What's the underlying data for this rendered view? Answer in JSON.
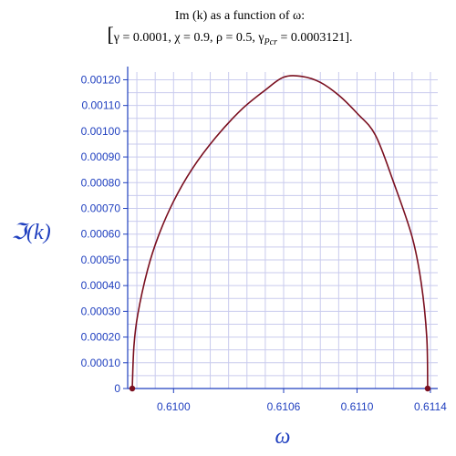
{
  "chart_data": {
    "type": "line",
    "title_line1": "Im (k) as a function of ω:",
    "title_line2": {
      "bracket_open": "[",
      "params": "γ = 0.0001,  χ = 0.9,  ρ = 0.5,  γ",
      "subscript": "Pcr",
      "value": " = 0.0003121",
      "bracket_close": "]."
    },
    "xlabel": "ω",
    "ylabel": "ℑ(k)",
    "xlim": [
      0.60975,
      0.61144
    ],
    "ylim": [
      0,
      0.00123
    ],
    "xticks": [
      {
        "value": 0.61,
        "label": "0.6100"
      },
      {
        "value": 0.6106,
        "label": "0.6106"
      },
      {
        "value": 0.611,
        "label": "0.6110"
      },
      {
        "value": 0.6114,
        "label": "0.6114"
      }
    ],
    "yticks": [
      {
        "value": 0,
        "label": "0"
      },
      {
        "value": 0.0001,
        "label": "0.00010"
      },
      {
        "value": 0.0002,
        "label": "0.00020"
      },
      {
        "value": 0.0003,
        "label": "0.00030"
      },
      {
        "value": 0.0004,
        "label": "0.00040"
      },
      {
        "value": 0.0005,
        "label": "0.00050"
      },
      {
        "value": 0.0006,
        "label": "0.00060"
      },
      {
        "value": 0.0007,
        "label": "0.00070"
      },
      {
        "value": 0.0008,
        "label": "0.00080"
      },
      {
        "value": 0.0009,
        "label": "0.00090"
      },
      {
        "value": 0.001,
        "label": "0.00100"
      },
      {
        "value": 0.0011,
        "label": "0.00110"
      },
      {
        "value": 0.0012,
        "label": "0.00120"
      }
    ],
    "grid": true,
    "series": [
      {
        "color": "#7a0f1f",
        "points": [
          [
            0.609775,
            0.0
          ],
          [
            0.609784,
            0.000164
          ],
          [
            0.609805,
            0.000288
          ],
          [
            0.609858,
            0.00046
          ],
          [
            0.609916,
            0.00059
          ],
          [
            0.609999,
            0.000726
          ],
          [
            0.6101,
            0.000852
          ],
          [
            0.61023,
            0.000976
          ],
          [
            0.61037,
            0.001084
          ],
          [
            0.6105,
            0.00116
          ],
          [
            0.6106,
            0.00121
          ],
          [
            0.6107,
            0.001213
          ],
          [
            0.6108,
            0.00119
          ],
          [
            0.6109,
            0.00114
          ],
          [
            0.611,
            0.00107
          ],
          [
            0.6111,
            0.000985
          ],
          [
            0.6112,
            0.0008
          ],
          [
            0.6113,
            0.00059
          ],
          [
            0.61135,
            0.00041
          ],
          [
            0.61138,
            0.0002
          ],
          [
            0.611385,
            0.0
          ]
        ]
      }
    ],
    "endpoints": [
      [
        0.609775,
        0.0
      ],
      [
        0.611385,
        0.0
      ]
    ],
    "colors": {
      "axis": "#1f3fbf",
      "grid": "#c9cbee",
      "curve": "#7a0f1f",
      "tick_text": "#1f3fbf"
    }
  }
}
